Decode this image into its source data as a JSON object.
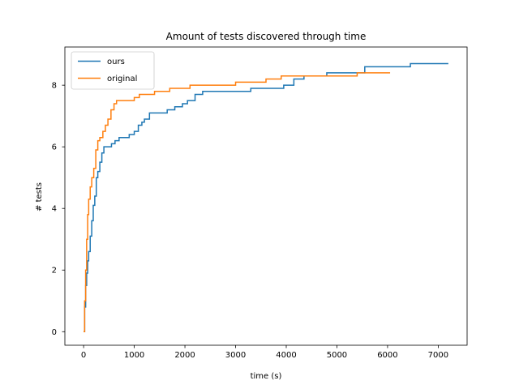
{
  "chart_data": {
    "type": "line",
    "title": "Amount of tests discovered through time",
    "xlabel": "time (s)",
    "ylabel": "# tests",
    "xlim": [
      -370,
      7570
    ],
    "ylim": [
      -0.44,
      9.24
    ],
    "xticks": [
      0,
      1000,
      2000,
      3000,
      4000,
      5000,
      6000,
      7000
    ],
    "yticks": [
      0,
      2,
      4,
      6,
      8
    ],
    "grid": false,
    "legend_position": "upper left",
    "step": true,
    "series": [
      {
        "name": "ours",
        "color": "#1f77b4",
        "x": [
          0,
          20,
          40,
          60,
          80,
          100,
          130,
          160,
          190,
          220,
          250,
          280,
          320,
          360,
          400,
          460,
          550,
          620,
          700,
          900,
          1000,
          1080,
          1150,
          1200,
          1300,
          1400,
          1650,
          1800,
          1950,
          2050,
          2200,
          2350,
          2500,
          2900,
          3000,
          3300,
          3600,
          3950,
          4150,
          4350,
          4800,
          5200,
          5550,
          6000,
          6450,
          6700,
          7200
        ],
        "y": [
          0,
          0.8,
          1.5,
          1.9,
          2.3,
          2.6,
          3.1,
          3.6,
          4.1,
          4.4,
          5.0,
          5.2,
          5.5,
          5.8,
          6.0,
          6.0,
          6.1,
          6.2,
          6.3,
          6.4,
          6.5,
          6.7,
          6.8,
          6.9,
          7.1,
          7.1,
          7.2,
          7.3,
          7.4,
          7.5,
          7.7,
          7.8,
          7.8,
          7.8,
          7.8,
          7.9,
          7.9,
          8.0,
          8.2,
          8.3,
          8.4,
          8.4,
          8.6,
          8.6,
          8.7,
          8.7,
          8.7
        ]
      },
      {
        "name": "original",
        "color": "#ff7f0e",
        "x": [
          0,
          20,
          40,
          60,
          80,
          100,
          130,
          160,
          200,
          240,
          280,
          320,
          380,
          430,
          480,
          540,
          600,
          650,
          700,
          1000,
          1100,
          1200,
          1400,
          1700,
          1900,
          2100,
          2300,
          2600,
          3000,
          3300,
          3600,
          3900,
          4200,
          4600,
          5000,
          5400,
          5700,
          6050
        ],
        "y": [
          0,
          1.0,
          2.0,
          3.0,
          3.8,
          4.3,
          4.7,
          5.0,
          5.3,
          5.9,
          6.2,
          6.3,
          6.5,
          6.7,
          6.9,
          7.2,
          7.4,
          7.5,
          7.5,
          7.6,
          7.7,
          7.7,
          7.8,
          7.9,
          7.9,
          8.0,
          8.0,
          8.0,
          8.1,
          8.1,
          8.2,
          8.3,
          8.3,
          8.3,
          8.3,
          8.4,
          8.4,
          8.4
        ]
      }
    ]
  }
}
